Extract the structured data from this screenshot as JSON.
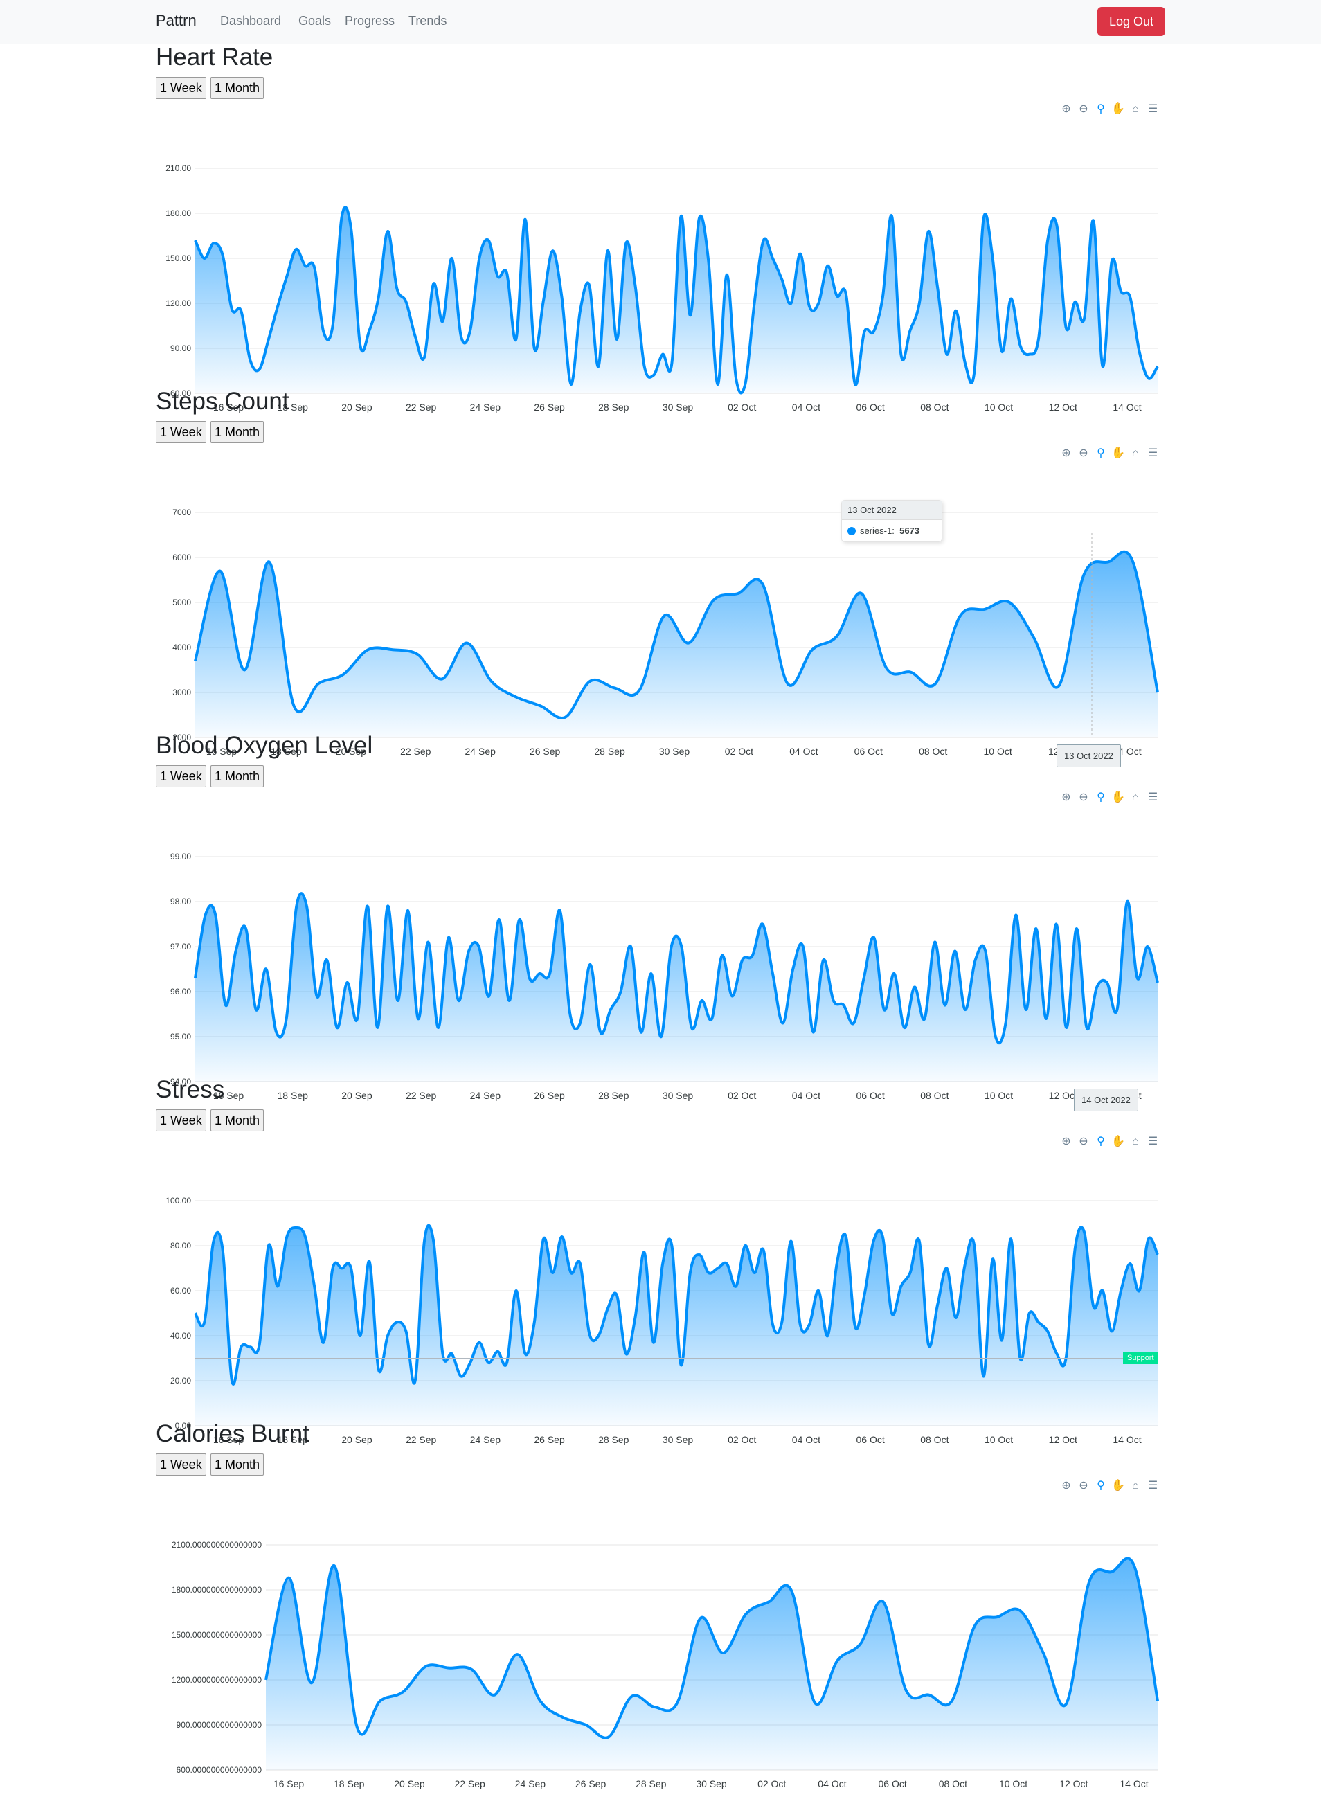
{
  "navbar": {
    "brand": "Pattrn",
    "links": [
      "Dashboard",
      "Goals",
      "Progress",
      "Trends"
    ],
    "logout": "Log Out"
  },
  "range_buttons": {
    "week": "1 Week",
    "month": "1 Month"
  },
  "toolbar_icons": [
    "zoom-in-icon",
    "zoom-out-icon",
    "zoom-select-icon",
    "pan-hand-icon",
    "home-icon",
    "menu-icon"
  ],
  "colors": {
    "accent": "#008ffb",
    "danger": "#dc3545",
    "support": "#00e396"
  },
  "x_ticks": [
    "16 Sep",
    "18 Sep",
    "20 Sep",
    "22 Sep",
    "24 Sep",
    "26 Sep",
    "28 Sep",
    "30 Sep",
    "02 Oct",
    "04 Oct",
    "06 Oct",
    "08 Oct",
    "10 Oct",
    "12 Oct",
    "14 Oct"
  ],
  "charts": [
    {
      "title": "Heart Rate",
      "tooltip": null,
      "annotation": null,
      "chart_data": {
        "type": "area",
        "x_start": "15 Sep",
        "x_end": "14 Oct",
        "y_ticks": [
          "210.00",
          "180.00",
          "150.00",
          "120.00",
          "90.00",
          "60.00"
        ],
        "ylim": [
          60,
          210
        ],
        "series": [
          {
            "values": [
              162,
              150,
              160,
              152,
              116,
              115,
              82,
              76,
              96,
              118,
              138,
              156,
              145,
              144,
              101,
              105,
              178,
              170,
              92,
              102,
              124,
              168,
              130,
              121,
              98,
              84,
              133,
              108,
              150,
              98,
              102,
              150,
              162,
              138,
              140,
              96,
              176,
              90,
              122,
              155,
              124,
              66,
              115,
              132,
              78,
              155,
              96,
              160,
              132,
              78,
              72,
              86,
              80,
              178,
              112,
              177,
              148,
              66,
              139,
              70,
              66,
              120,
              162,
              150,
              136,
              120,
              153,
              118,
              120,
              145,
              125,
              126,
              66,
              101,
              101,
              124,
              178,
              86,
              102,
              120,
              168,
              130,
              86,
              115,
              80,
              74,
              176,
              150,
              88,
              123,
              92,
              86,
              96,
              162,
              172,
              104,
              121,
              110,
              175,
              78,
              148,
              128,
              124,
              88,
              70,
              78
            ]
          }
        ]
      }
    },
    {
      "title": "Steps Count",
      "tooltip": {
        "date": "13 Oct 2022",
        "label": "series-1:",
        "value": "5673"
      },
      "xaxis_tooltip": "13 Oct 2022",
      "annotation": null,
      "chart_data": {
        "type": "area",
        "x_start": "15 Sep",
        "x_end": "14 Oct",
        "y_ticks": [
          "7000",
          "6000",
          "5000",
          "4000",
          "3000",
          "2000"
        ],
        "ylim": [
          2000,
          7000
        ],
        "series": [
          {
            "name": "series-1",
            "values": [
              3700,
              5700,
              3500,
              5900,
              2700,
              3200,
              3400,
              3950,
              3950,
              3850,
              3300,
              4100,
              3250,
              2900,
              2700,
              2450,
              3250,
              3100,
              3050,
              4700,
              4100,
              5050,
              5200,
              5400,
              3200,
              3950,
              4250,
              5200,
              3550,
              3450,
              3200,
              4700,
              4850,
              5000,
              4200,
              3150,
              5600,
              5900,
              5900,
              3000
            ]
          }
        ]
      }
    },
    {
      "title": "Blood Oxygen Level",
      "tooltip": null,
      "xaxis_tooltip": "14 Oct 2022",
      "annotation": null,
      "chart_data": {
        "type": "area",
        "x_start": "15 Sep",
        "x_end": "14 Oct",
        "y_ticks": [
          "99.00",
          "98.00",
          "97.00",
          "96.00",
          "95.00",
          "94.00"
        ],
        "ylim": [
          94,
          99
        ],
        "series": [
          {
            "values": [
              96.3,
              97.7,
              97.7,
              95.7,
              96.9,
              97.4,
              95.6,
              96.5,
              95.1,
              95.4,
              97.9,
              97.9,
              95.9,
              96.7,
              95.2,
              96.2,
              95.4,
              97.9,
              95.2,
              97.9,
              95.8,
              97.8,
              95.4,
              97.1,
              95.2,
              97.2,
              95.8,
              96.9,
              97.0,
              95.9,
              97.6,
              95.8,
              97.6,
              96.3,
              96.4,
              96.4,
              97.8,
              95.5,
              95.3,
              96.6,
              95.1,
              95.6,
              96.0,
              97.0,
              95.1,
              96.4,
              95.0,
              97.0,
              97.0,
              95.2,
              95.8,
              95.4,
              96.8,
              95.9,
              96.7,
              96.8,
              97.5,
              96.4,
              95.3,
              96.5,
              97.0,
              95.1,
              96.7,
              95.8,
              95.7,
              95.3,
              96.3,
              97.2,
              95.6,
              96.4,
              95.2,
              96.1,
              95.4,
              97.1,
              95.7,
              96.9,
              95.6,
              96.7,
              96.9,
              95.0,
              95.3,
              97.7,
              95.6,
              97.4,
              95.4,
              97.5,
              95.2,
              97.4,
              95.2,
              96.1,
              96.2,
              95.6,
              98.0,
              96.3,
              97.0,
              96.2
            ]
          }
        ]
      }
    },
    {
      "title": "Stress",
      "tooltip": null,
      "annotation": {
        "label": "Support",
        "y": 30
      },
      "chart_data": {
        "type": "area",
        "x_start": "15 Sep",
        "x_end": "14 Oct",
        "y_ticks": [
          "100.00",
          "80.00",
          "60.00",
          "40.00",
          "20.00",
          "0.00"
        ],
        "ylim": [
          0,
          100
        ],
        "series": [
          {
            "values": [
              50,
              46,
              82,
              78,
              20,
              35,
              35,
              36,
              80,
              62,
              84,
              88,
              84,
              62,
              37,
              70,
              70,
              70,
              40,
              73,
              25,
              40,
              46,
              42,
              20,
              82,
              82,
              32,
              32,
              22,
              28,
              37,
              28,
              33,
              28,
              60,
              32,
              46,
              83,
              68,
              84,
              68,
              72,
              41,
              40,
              52,
              58,
              32,
              48,
              77,
              37,
              72,
              80,
              27,
              68,
              76,
              68,
              70,
              72,
              62,
              80,
              68,
              78,
              45,
              46,
              82,
              45,
              45,
              60,
              40,
              72,
              84,
              44,
              58,
              82,
              84,
              50,
              62,
              68,
              82,
              36,
              54,
              70,
              48,
              72,
              80,
              22,
              74,
              38,
              83,
              30,
              50,
              46,
              42,
              32,
              30,
              79,
              86,
              53,
              60,
              42,
              60,
              72,
              60,
              83,
              76
            ]
          }
        ]
      }
    },
    {
      "title": "Calories Burnt",
      "tooltip": null,
      "annotation": null,
      "chart_data": {
        "type": "area",
        "x_start": "15 Sep",
        "x_end": "14 Oct",
        "y_ticks": [
          "2100.000000000000000",
          "1800.000000000000000",
          "1500.000000000000000",
          "1200.000000000000000",
          "900.000000000000000",
          "600.000000000000000"
        ],
        "ylim": [
          600,
          2100
        ],
        "series": [
          {
            "values": [
              1200,
              1880,
              1180,
              1960,
              880,
              1060,
              1120,
              1290,
              1280,
              1270,
              1100,
              1370,
              1060,
              950,
              900,
              820,
              1090,
              1020,
              1050,
              1610,
              1380,
              1640,
              1720,
              1790,
              1050,
              1330,
              1440,
              1720,
              1130,
              1100,
              1060,
              1560,
              1620,
              1660,
              1380,
              1040,
              1850,
              1920,
              1950,
              1060
            ]
          }
        ]
      }
    }
  ]
}
